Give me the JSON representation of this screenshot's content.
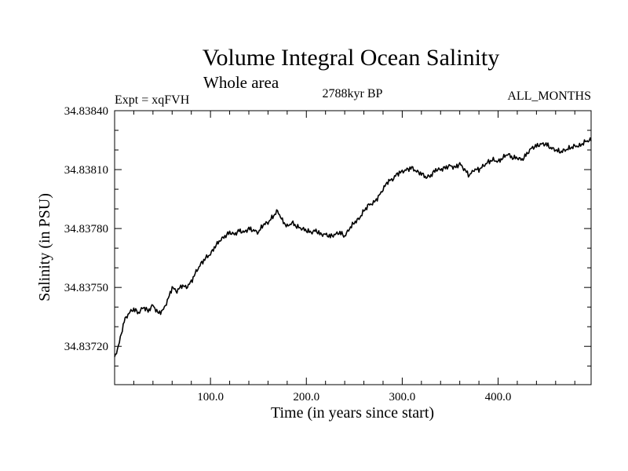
{
  "chart_data": {
    "type": "line",
    "title": "Volume Integral Ocean Salinity",
    "subtitle": "Whole area",
    "experiment_label": "Expt = xqFVH",
    "period_label": "2788kyr BP",
    "months_label": "ALL_MONTHS",
    "xlabel": "Time (in years since start)",
    "ylabel": "Salinity (in PSU)",
    "xlim": [
      0,
      497
    ],
    "ylim": [
      34.837005,
      34.8384
    ],
    "x_ticks": [
      100,
      200,
      300,
      400
    ],
    "x_tick_labels": [
      "100.0",
      "200.0",
      "300.0",
      "400.0"
    ],
    "y_ticks": [
      34.8372,
      34.8375,
      34.8378,
      34.8381,
      34.8384
    ],
    "y_tick_labels": [
      "34.83720",
      "34.83750",
      "34.83780",
      "34.83810",
      "34.83840"
    ],
    "grid": false,
    "series": [
      {
        "name": "Volume Integral Ocean Salinity",
        "x": [
          0,
          5,
          10,
          15,
          20,
          25,
          30,
          35,
          40,
          45,
          50,
          55,
          60,
          65,
          70,
          75,
          80,
          85,
          90,
          95,
          100,
          105,
          110,
          115,
          120,
          125,
          130,
          135,
          140,
          145,
          150,
          155,
          160,
          165,
          170,
          175,
          180,
          185,
          190,
          195,
          200,
          205,
          210,
          215,
          220,
          225,
          230,
          235,
          240,
          245,
          250,
          255,
          260,
          265,
          270,
          275,
          280,
          285,
          290,
          295,
          300,
          305,
          310,
          315,
          320,
          325,
          330,
          335,
          340,
          345,
          350,
          355,
          360,
          365,
          370,
          375,
          380,
          385,
          390,
          395,
          400,
          405,
          410,
          415,
          420,
          425,
          430,
          435,
          440,
          445,
          450,
          455,
          460,
          465,
          470,
          475,
          480,
          485,
          490,
          495,
          497
        ],
        "values": [
          34.83714,
          34.83722,
          34.83733,
          34.83737,
          34.83739,
          34.83737,
          34.8374,
          34.83738,
          34.83741,
          34.83737,
          34.83738,
          34.83743,
          34.8375,
          34.83748,
          34.83751,
          34.8375,
          34.83753,
          34.83758,
          34.83762,
          34.83765,
          34.83767,
          34.83771,
          34.83774,
          34.83776,
          34.83778,
          34.83777,
          34.83779,
          34.83778,
          34.8378,
          34.83779,
          34.83778,
          34.83782,
          34.83783,
          34.83786,
          34.83789,
          34.83784,
          34.83781,
          34.83783,
          34.83781,
          34.8378,
          34.83779,
          34.83778,
          34.83779,
          34.83777,
          34.83777,
          34.83776,
          34.83777,
          34.83778,
          34.83776,
          34.8378,
          34.83783,
          34.83785,
          34.83789,
          34.83792,
          34.83793,
          34.83796,
          34.838,
          34.83804,
          34.83805,
          34.83808,
          34.83809,
          34.8381,
          34.83811,
          34.83809,
          34.83808,
          34.83806,
          34.83807,
          34.8381,
          34.8381,
          34.83811,
          34.83812,
          34.83811,
          34.83813,
          34.8381,
          34.83807,
          34.8381,
          34.8381,
          34.83812,
          34.83814,
          34.83815,
          34.83814,
          34.83816,
          34.83818,
          34.83816,
          34.83816,
          34.83815,
          34.83818,
          34.83821,
          34.83822,
          34.83823,
          34.83823,
          34.83821,
          34.8382,
          34.83819,
          34.8382,
          34.83821,
          34.83822,
          34.83822,
          34.83824,
          34.83825,
          34.83825
        ]
      }
    ]
  }
}
